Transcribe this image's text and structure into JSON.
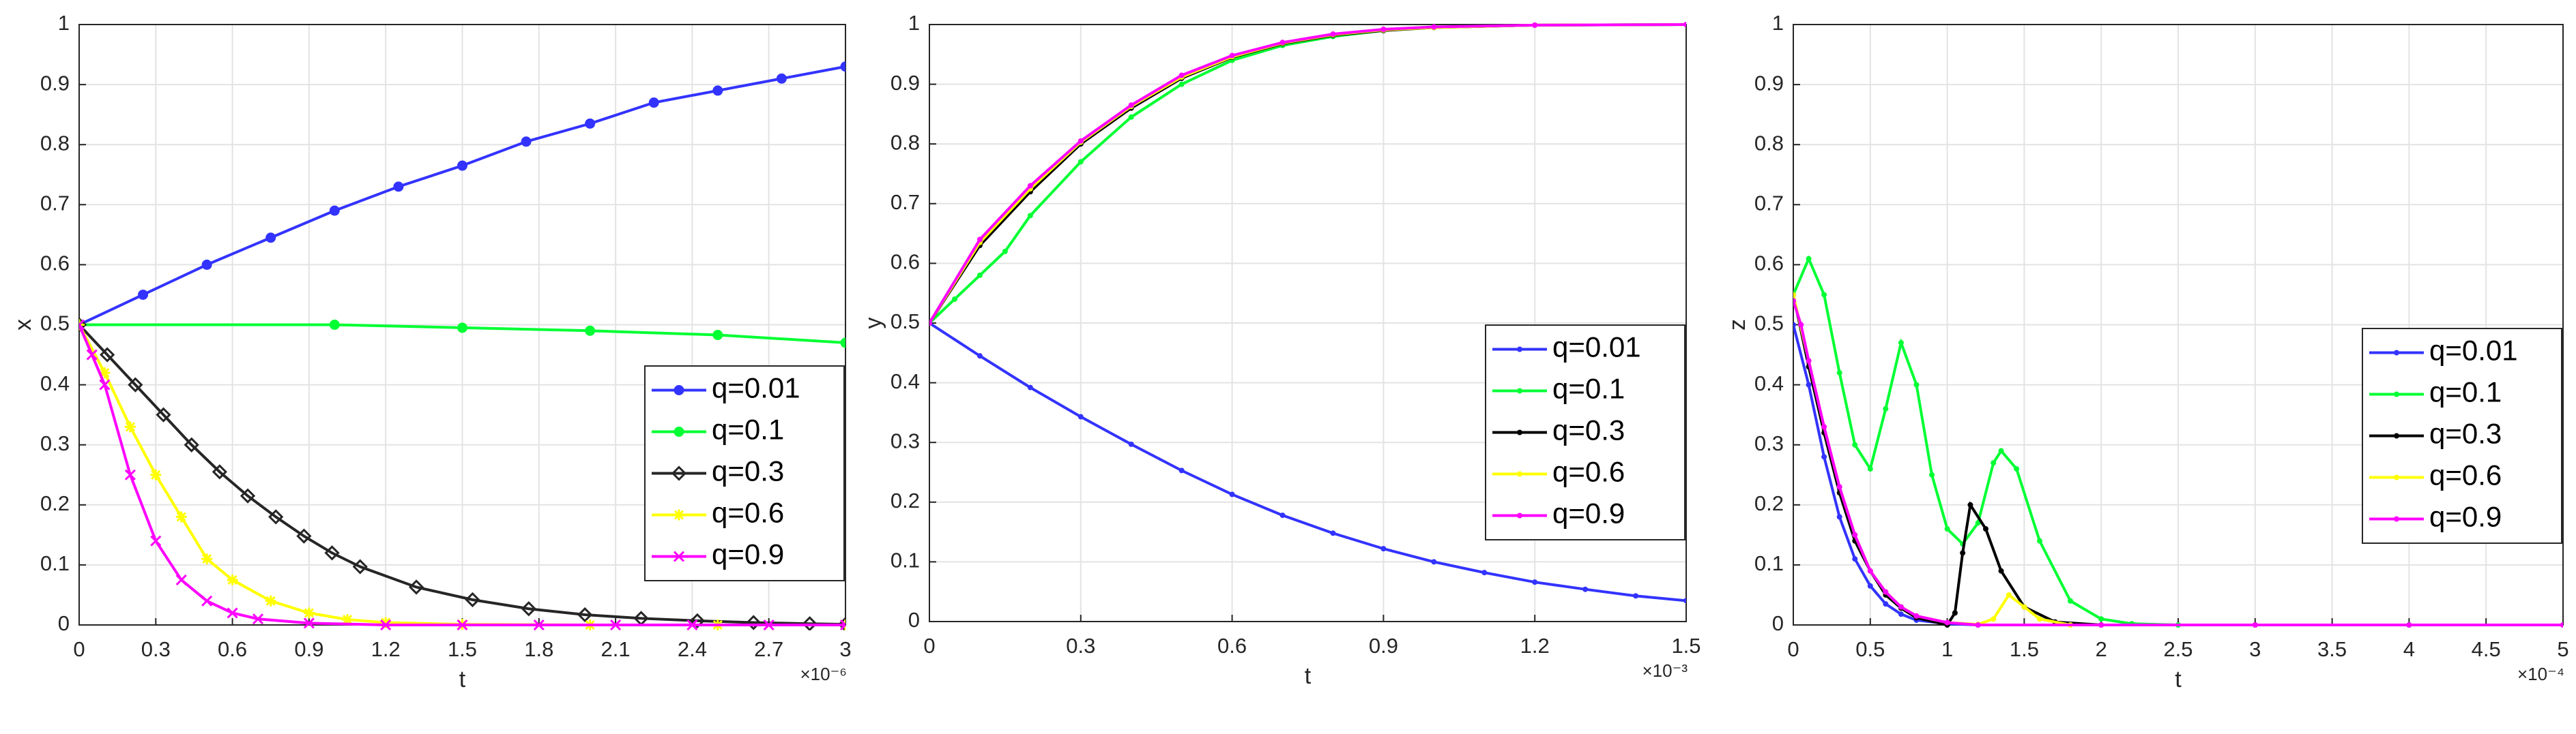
{
  "chart_data": [
    {
      "type": "line",
      "xlabel": "t",
      "ylabel": "x",
      "x_multiplier": "×10⁻⁶",
      "xlim": [
        0,
        3
      ],
      "ylim": [
        0,
        1
      ],
      "xticks": [
        0,
        0.3,
        0.6,
        0.9,
        1.2,
        1.5,
        1.8,
        2.1,
        2.4,
        2.7,
        3
      ],
      "yticks": [
        0,
        0.1,
        0.2,
        0.3,
        0.4,
        0.5,
        0.6,
        0.7,
        0.8,
        0.9,
        1
      ],
      "grid": true,
      "legend": "lower right",
      "series": [
        {
          "name": "q=0.01",
          "color": "#3333ff",
          "marker": "circle",
          "x": [
            0,
            0.25,
            0.5,
            0.75,
            1.0,
            1.25,
            1.5,
            1.75,
            2.0,
            2.25,
            2.5,
            2.75,
            3.0
          ],
          "values": [
            0.5,
            0.55,
            0.6,
            0.645,
            0.69,
            0.73,
            0.765,
            0.805,
            0.835,
            0.87,
            0.89,
            0.91,
            0.93
          ]
        },
        {
          "name": "q=0.1",
          "color": "#00ff33",
          "marker": "circle",
          "x": [
            0,
            1,
            1.5,
            2,
            2.5,
            3
          ],
          "values": [
            0.5,
            0.5,
            0.495,
            0.49,
            0.483,
            0.47
          ]
        },
        {
          "name": "q=0.3",
          "color": "#262626",
          "marker": "diamond",
          "x": [
            0,
            0.11,
            0.22,
            0.33,
            0.44,
            0.55,
            0.66,
            0.77,
            0.88,
            0.99,
            1.1,
            1.32,
            1.54,
            1.76,
            1.98,
            2.2,
            2.42,
            2.64,
            2.86,
            3
          ],
          "values": [
            0.5,
            0.45,
            0.4,
            0.35,
            0.3,
            0.255,
            0.215,
            0.18,
            0.148,
            0.12,
            0.097,
            0.063,
            0.042,
            0.027,
            0.017,
            0.011,
            0.007,
            0.004,
            0.002,
            0.001
          ]
        },
        {
          "name": "q=0.6",
          "color": "#ffff00",
          "marker": "star",
          "x": [
            0,
            0.1,
            0.2,
            0.3,
            0.4,
            0.5,
            0.6,
            0.75,
            0.9,
            1.05,
            1.2,
            1.5,
            2,
            2.5,
            3
          ],
          "values": [
            0.5,
            0.42,
            0.33,
            0.25,
            0.18,
            0.11,
            0.075,
            0.04,
            0.02,
            0.009,
            0.004,
            0.001,
            0,
            0,
            0
          ]
        },
        {
          "name": "q=0.9",
          "color": "#ff00ff",
          "marker": "x",
          "x": [
            0,
            0.05,
            0.1,
            0.2,
            0.3,
            0.4,
            0.5,
            0.6,
            0.7,
            0.9,
            1.2,
            1.5,
            1.8,
            2.1,
            2.4,
            2.7,
            3
          ],
          "values": [
            0.5,
            0.45,
            0.4,
            0.25,
            0.14,
            0.075,
            0.04,
            0.02,
            0.01,
            0.003,
            0,
            0,
            0,
            0,
            0,
            0,
            0
          ]
        }
      ]
    },
    {
      "type": "line",
      "xlabel": "t",
      "ylabel": "y",
      "x_multiplier": "×10⁻³",
      "xlim": [
        0,
        1.5
      ],
      "ylim": [
        0,
        1
      ],
      "xticks": [
        0,
        0.3,
        0.6,
        0.9,
        1.2,
        1.5
      ],
      "yticks": [
        0,
        0.1,
        0.2,
        0.3,
        0.4,
        0.5,
        0.6,
        0.7,
        0.8,
        0.9,
        1
      ],
      "grid": true,
      "legend": "right",
      "series": [
        {
          "name": "q=0.01",
          "color": "#3333ff",
          "marker": "dot",
          "x": [
            0,
            0.1,
            0.2,
            0.3,
            0.4,
            0.5,
            0.6,
            0.7,
            0.8,
            0.9,
            1.0,
            1.1,
            1.2,
            1.3,
            1.4,
            1.5
          ],
          "values": [
            0.5,
            0.445,
            0.392,
            0.343,
            0.297,
            0.253,
            0.213,
            0.178,
            0.148,
            0.122,
            0.1,
            0.082,
            0.066,
            0.054,
            0.043,
            0.035
          ]
        },
        {
          "name": "q=0.1",
          "color": "#00ff33",
          "marker": "dot",
          "x": [
            0,
            0.05,
            0.1,
            0.15,
            0.2,
            0.3,
            0.4,
            0.5,
            0.6,
            0.7,
            0.8,
            0.9,
            1.0,
            1.2,
            1.5
          ],
          "values": [
            0.5,
            0.54,
            0.58,
            0.62,
            0.68,
            0.77,
            0.845,
            0.9,
            0.94,
            0.965,
            0.98,
            0.99,
            0.995,
            0.999,
            1
          ]
        },
        {
          "name": "q=0.3",
          "color": "#000000",
          "marker": "dot",
          "x": [
            0,
            0.1,
            0.2,
            0.3,
            0.4,
            0.5,
            0.6,
            0.7,
            0.8,
            0.9,
            1.0,
            1.2,
            1.5
          ],
          "values": [
            0.5,
            0.63,
            0.72,
            0.8,
            0.86,
            0.91,
            0.945,
            0.968,
            0.982,
            0.99,
            0.995,
            0.999,
            1
          ]
        },
        {
          "name": "q=0.6",
          "color": "#ffff00",
          "marker": "dot",
          "x": [
            0,
            0.1,
            0.2,
            0.3,
            0.4,
            0.5,
            0.6,
            0.7,
            0.8,
            0.9,
            1.0,
            1.2,
            1.5
          ],
          "values": [
            0.5,
            0.635,
            0.725,
            0.803,
            0.863,
            0.912,
            0.946,
            0.969,
            0.983,
            0.991,
            0.995,
            0.999,
            1
          ]
        },
        {
          "name": "q=0.9",
          "color": "#ff00ff",
          "marker": "dot",
          "x": [
            0,
            0.1,
            0.2,
            0.3,
            0.4,
            0.5,
            0.6,
            0.7,
            0.8,
            0.9,
            1.0,
            1.2,
            1.5
          ],
          "values": [
            0.5,
            0.64,
            0.73,
            0.805,
            0.865,
            0.915,
            0.948,
            0.97,
            0.984,
            0.992,
            0.996,
            0.999,
            1
          ]
        }
      ]
    },
    {
      "type": "line",
      "xlabel": "t",
      "ylabel": "z",
      "x_multiplier": "×10⁻⁴",
      "xlim": [
        0,
        5
      ],
      "ylim": [
        0,
        1
      ],
      "xticks": [
        0,
        0.5,
        1,
        1.5,
        2,
        2.5,
        3,
        3.5,
        4,
        4.5,
        5
      ],
      "yticks": [
        0,
        0.1,
        0.2,
        0.3,
        0.4,
        0.5,
        0.6,
        0.7,
        0.8,
        0.9,
        1
      ],
      "grid": true,
      "legend": "right",
      "series": [
        {
          "name": "q=0.01",
          "color": "#3333ff",
          "marker": "dot",
          "x": [
            0,
            0.1,
            0.2,
            0.3,
            0.4,
            0.5,
            0.6,
            0.7,
            0.8,
            1.0,
            1.2,
            2,
            3,
            4,
            5
          ],
          "values": [
            0.5,
            0.4,
            0.28,
            0.18,
            0.11,
            0.065,
            0.035,
            0.018,
            0.008,
            0.002,
            0,
            0,
            0,
            0,
            0
          ]
        },
        {
          "name": "q=0.1",
          "color": "#00ff33",
          "marker": "dot",
          "x": [
            0,
            0.1,
            0.2,
            0.3,
            0.4,
            0.5,
            0.6,
            0.7,
            0.8,
            0.9,
            1.0,
            1.1,
            1.2,
            1.3,
            1.35,
            1.45,
            1.6,
            1.8,
            2.0,
            2.2,
            2.5,
            3,
            4,
            5
          ],
          "values": [
            0.55,
            0.61,
            0.55,
            0.42,
            0.3,
            0.26,
            0.36,
            0.47,
            0.4,
            0.25,
            0.16,
            0.135,
            0.17,
            0.27,
            0.29,
            0.26,
            0.14,
            0.04,
            0.01,
            0.002,
            0,
            0,
            0,
            0
          ]
        },
        {
          "name": "q=0.3",
          "color": "#000000",
          "marker": "dot",
          "x": [
            0,
            0.1,
            0.2,
            0.3,
            0.4,
            0.5,
            0.6,
            0.7,
            0.8,
            1.0,
            1.05,
            1.1,
            1.15,
            1.25,
            1.35,
            1.5,
            1.7,
            2,
            3,
            5
          ],
          "values": [
            0.55,
            0.43,
            0.32,
            0.22,
            0.14,
            0.09,
            0.05,
            0.028,
            0.012,
            0,
            0.02,
            0.12,
            0.2,
            0.16,
            0.09,
            0.03,
            0.005,
            0,
            0,
            0
          ]
        },
        {
          "name": "q=0.6",
          "color": "#ffff00",
          "marker": "dot",
          "x": [
            0,
            0.1,
            0.2,
            0.3,
            0.4,
            0.5,
            0.6,
            0.7,
            0.8,
            1.0,
            1.2,
            1.3,
            1.4,
            1.5,
            1.6,
            1.8,
            2,
            3,
            5
          ],
          "values": [
            0.55,
            0.44,
            0.33,
            0.23,
            0.15,
            0.09,
            0.055,
            0.03,
            0.015,
            0.004,
            0.001,
            0.01,
            0.05,
            0.03,
            0.01,
            0,
            0,
            0,
            0
          ]
        },
        {
          "name": "q=0.9",
          "color": "#ff00ff",
          "marker": "dot",
          "x": [
            0,
            0.05,
            0.1,
            0.2,
            0.3,
            0.4,
            0.5,
            0.6,
            0.7,
            0.8,
            1.0,
            1.2,
            2,
            3,
            4,
            5
          ],
          "values": [
            0.54,
            0.5,
            0.44,
            0.33,
            0.23,
            0.15,
            0.09,
            0.055,
            0.03,
            0.015,
            0.004,
            0,
            0,
            0,
            0,
            0
          ]
        }
      ]
    }
  ]
}
